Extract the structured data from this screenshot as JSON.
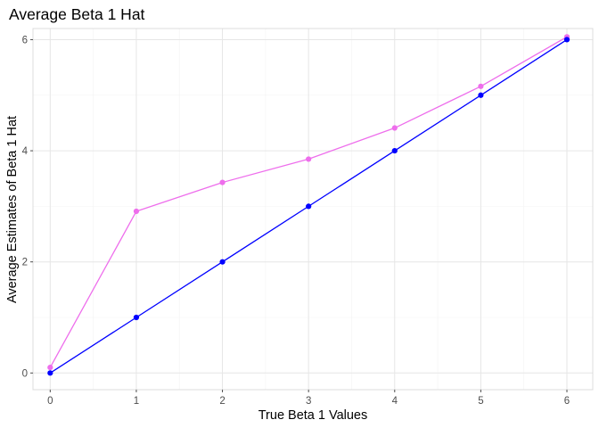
{
  "chart_data": {
    "type": "line",
    "title": "Average Beta 1 Hat",
    "xlabel": "True Beta 1 Values",
    "ylabel": "Average Estimates of Beta 1 Hat",
    "xlim": [
      -0.2,
      6.3
    ],
    "ylim": [
      -0.3,
      6.2
    ],
    "x_ticks": [
      0,
      1,
      2,
      3,
      4,
      5,
      6
    ],
    "y_ticks": [
      0,
      2,
      4,
      6
    ],
    "grid": true,
    "legend": "none",
    "x": [
      0,
      1,
      2,
      3,
      4,
      5,
      6
    ],
    "series": [
      {
        "color": "#ee6eec",
        "values": [
          0.1,
          2.91,
          3.43,
          3.85,
          4.41,
          5.16,
          6.05
        ]
      },
      {
        "color": "#0000ff",
        "values": [
          0,
          1,
          2,
          3,
          4,
          5,
          6
        ]
      }
    ]
  }
}
